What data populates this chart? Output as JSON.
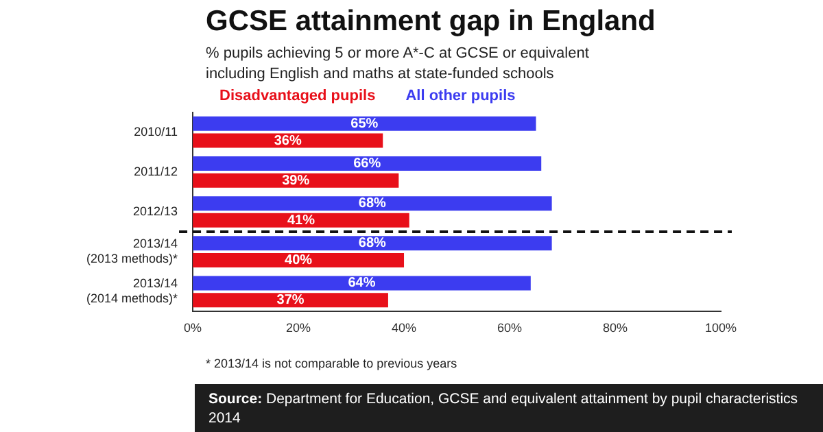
{
  "chart_data": {
    "type": "bar",
    "orientation": "horizontal",
    "title": "GCSE attainment gap in England",
    "subtitle": "% pupils achieving 5 or more A*-C at GCSE or equivalent including English and maths at state-funded schools",
    "categories": [
      "2010/11",
      "2011/12",
      "2012/13",
      "2013/14\n(2013 methods)*",
      "2013/14\n(2014 methods)*"
    ],
    "series": [
      {
        "name": "All other pupils",
        "color": "#3c3cf0",
        "values": [
          65,
          66,
          68,
          68,
          64
        ],
        "value_labels": [
          "65%",
          "66%",
          "68%",
          "68%",
          "64%"
        ]
      },
      {
        "name": "Disadvantaged pupils",
        "color": "#e8101a",
        "values": [
          36,
          39,
          41,
          40,
          37
        ],
        "value_labels": [
          "36%",
          "39%",
          "41%",
          "40%",
          "37%"
        ]
      }
    ],
    "xlim": [
      0,
      100
    ],
    "xticks": [
      {
        "value": 0,
        "label": "0%"
      },
      {
        "value": 20,
        "label": "20%"
      },
      {
        "value": 40,
        "label": "40%"
      },
      {
        "value": 60,
        "label": "60%"
      },
      {
        "value": 80,
        "label": "80%"
      },
      {
        "value": 100,
        "label": "100%"
      }
    ],
    "grid": false,
    "legend": "top left",
    "annotations": [
      "* 2013/14 is not comparable to previous years",
      "Source: Department for Education, GCSE and equivalent attainment by pupil characteristics 2014"
    ]
  }
}
